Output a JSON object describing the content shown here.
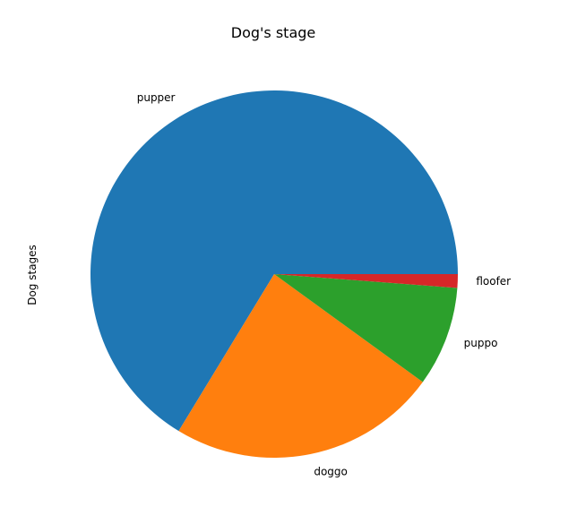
{
  "chart_data": {
    "type": "pie",
    "title": "Dog's stage",
    "ylabel": "Dog stages",
    "slices": [
      {
        "label": "pupper",
        "value": 66.3,
        "color": "#1f77b4"
      },
      {
        "label": "doggo",
        "value": 23.7,
        "color": "#ff7f0e"
      },
      {
        "label": "puppo",
        "value": 8.8,
        "color": "#2ca02c"
      },
      {
        "label": "floofer",
        "value": 1.2,
        "color": "#d62728"
      }
    ],
    "start_angle_deg": 0,
    "direction": "counterclockwise"
  }
}
